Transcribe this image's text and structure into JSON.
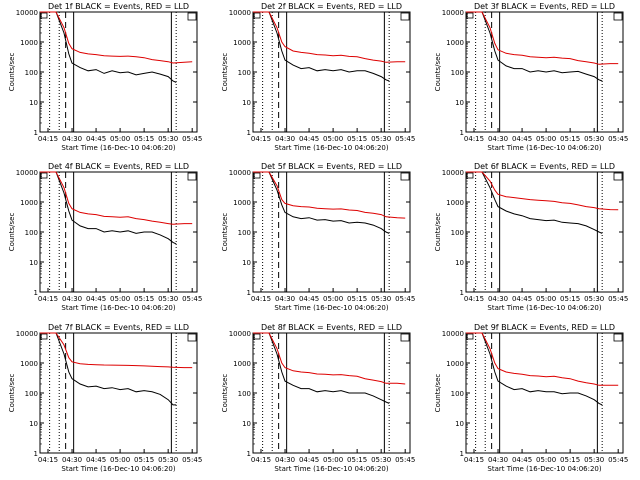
{
  "colors": {
    "events": "#000000",
    "lld": "#dd0000",
    "axis": "#000000",
    "marker": "#000000"
  },
  "shared": {
    "ylabel": "Counts/sec",
    "xlabel": "Start Time (16-Dec-10 04:06:20)",
    "x_ticks": [
      "04:15",
      "04:30",
      "04:45",
      "05:00",
      "05:15",
      "05:30",
      "05:45"
    ],
    "y_ticks": [
      "1",
      "10",
      "100",
      "1000",
      "10000"
    ],
    "y_scale": "log",
    "ylim": [
      1,
      10000
    ]
  },
  "chart_data": [
    {
      "type": "line",
      "title": "Det 1f BLACK = Events, RED = LLD",
      "series": [
        {
          "name": "Events",
          "color": "#000000",
          "x": [
            "04:10",
            "04:15",
            "04:20",
            "04:25",
            "04:28",
            "04:30",
            "04:35",
            "04:40",
            "04:45",
            "04:50",
            "04:55",
            "05:00",
            "05:05",
            "05:10",
            "05:15",
            "05:20",
            "05:25",
            "05:30",
            "05:33",
            "05:35"
          ],
          "values": [
            10000,
            10000,
            10000,
            2000,
            400,
            200,
            140,
            110,
            120,
            90,
            110,
            95,
            100,
            80,
            90,
            100,
            85,
            70,
            50,
            45
          ]
        },
        {
          "name": "LLD",
          "color": "#dd0000",
          "x": [
            "04:10",
            "04:15",
            "04:20",
            "04:25",
            "04:28",
            "04:30",
            "04:35",
            "04:40",
            "04:45",
            "04:50",
            "04:55",
            "05:00",
            "05:05",
            "05:10",
            "05:15",
            "05:20",
            "05:25",
            "05:30",
            "05:33",
            "05:40",
            "05:45"
          ],
          "values": [
            10000,
            10000,
            10000,
            3000,
            900,
            600,
            450,
            400,
            380,
            350,
            340,
            330,
            340,
            320,
            300,
            260,
            240,
            220,
            200,
            210,
            220
          ]
        }
      ]
    },
    {
      "type": "line",
      "title": "Det 2f BLACK = Events, RED = LLD",
      "series": [
        {
          "name": "Events",
          "color": "#000000",
          "x": [
            "04:10",
            "04:15",
            "04:20",
            "04:25",
            "04:28",
            "04:30",
            "04:35",
            "04:40",
            "04:45",
            "04:50",
            "04:55",
            "05:00",
            "05:05",
            "05:10",
            "05:15",
            "05:20",
            "05:25",
            "05:30",
            "05:33",
            "05:35"
          ],
          "values": [
            10000,
            10000,
            10000,
            2000,
            500,
            250,
            170,
            130,
            140,
            110,
            120,
            110,
            120,
            100,
            110,
            110,
            90,
            70,
            55,
            50
          ]
        },
        {
          "name": "LLD",
          "color": "#dd0000",
          "x": [
            "04:10",
            "04:15",
            "04:20",
            "04:25",
            "04:28",
            "04:30",
            "04:35",
            "04:40",
            "04:45",
            "04:50",
            "04:55",
            "05:00",
            "05:05",
            "05:10",
            "05:15",
            "05:20",
            "05:25",
            "05:30",
            "05:33",
            "05:40",
            "05:45"
          ],
          "values": [
            10000,
            10000,
            10000,
            3000,
            1000,
            700,
            500,
            450,
            420,
            380,
            370,
            350,
            360,
            330,
            320,
            280,
            250,
            230,
            210,
            220,
            220
          ]
        }
      ]
    },
    {
      "type": "line",
      "title": "Det 3f BLACK = Events, RED = LLD",
      "series": [
        {
          "name": "Events",
          "color": "#000000",
          "x": [
            "04:10",
            "04:15",
            "04:20",
            "04:25",
            "04:28",
            "04:30",
            "04:35",
            "04:40",
            "04:45",
            "04:50",
            "04:55",
            "05:00",
            "05:05",
            "05:10",
            "05:15",
            "05:20",
            "05:25",
            "05:30",
            "05:33",
            "05:35"
          ],
          "values": [
            10000,
            10000,
            10000,
            2000,
            500,
            250,
            160,
            130,
            130,
            100,
            110,
            100,
            110,
            95,
            100,
            105,
            85,
            70,
            55,
            50
          ]
        },
        {
          "name": "LLD",
          "color": "#dd0000",
          "x": [
            "04:10",
            "04:15",
            "04:20",
            "04:25",
            "04:28",
            "04:30",
            "04:35",
            "04:40",
            "04:45",
            "04:50",
            "04:55",
            "05:00",
            "05:05",
            "05:10",
            "05:15",
            "05:20",
            "05:25",
            "05:30",
            "05:33",
            "05:40",
            "05:45"
          ],
          "values": [
            10000,
            10000,
            10000,
            3000,
            900,
            550,
            420,
            380,
            360,
            320,
            310,
            300,
            310,
            290,
            280,
            240,
            220,
            200,
            180,
            190,
            190
          ]
        }
      ]
    },
    {
      "type": "line",
      "title": "Det 4f BLACK = Events, RED = LLD",
      "series": [
        {
          "name": "Events",
          "color": "#000000",
          "x": [
            "04:10",
            "04:15",
            "04:20",
            "04:25",
            "04:28",
            "04:30",
            "04:35",
            "04:40",
            "04:45",
            "04:50",
            "04:55",
            "05:00",
            "05:05",
            "05:10",
            "05:15",
            "05:20",
            "05:25",
            "05:30",
            "05:33",
            "05:35"
          ],
          "values": [
            10000,
            10000,
            10000,
            2000,
            500,
            250,
            160,
            130,
            130,
            100,
            110,
            100,
            110,
            90,
            100,
            100,
            80,
            60,
            45,
            40
          ]
        },
        {
          "name": "LLD",
          "color": "#dd0000",
          "x": [
            "04:10",
            "04:15",
            "04:20",
            "04:25",
            "04:28",
            "04:30",
            "04:35",
            "04:40",
            "04:45",
            "04:50",
            "04:55",
            "05:00",
            "05:05",
            "05:10",
            "05:15",
            "05:20",
            "05:25",
            "05:30",
            "05:33",
            "05:40",
            "05:45"
          ],
          "values": [
            10000,
            10000,
            10000,
            3000,
            900,
            600,
            450,
            400,
            380,
            330,
            320,
            310,
            320,
            280,
            260,
            230,
            210,
            190,
            180,
            190,
            190
          ]
        }
      ]
    },
    {
      "type": "line",
      "title": "Det 5f BLACK = Events, RED = LLD",
      "series": [
        {
          "name": "Events",
          "color": "#000000",
          "x": [
            "04:10",
            "04:15",
            "04:20",
            "04:25",
            "04:28",
            "04:30",
            "04:35",
            "04:40",
            "04:45",
            "04:50",
            "04:55",
            "05:00",
            "05:05",
            "05:10",
            "05:15",
            "05:20",
            "05:25",
            "05:30",
            "05:33",
            "05:35"
          ],
          "values": [
            10000,
            10000,
            10000,
            2500,
            800,
            450,
            320,
            280,
            300,
            250,
            260,
            230,
            240,
            200,
            210,
            200,
            170,
            130,
            100,
            90
          ]
        },
        {
          "name": "LLD",
          "color": "#dd0000",
          "x": [
            "04:10",
            "04:15",
            "04:20",
            "04:25",
            "04:28",
            "04:30",
            "04:35",
            "04:40",
            "04:45",
            "04:50",
            "04:55",
            "05:00",
            "05:05",
            "05:10",
            "05:15",
            "05:20",
            "05:25",
            "05:30",
            "05:33",
            "05:40",
            "05:45"
          ],
          "values": [
            10000,
            10000,
            10000,
            3500,
            1200,
            900,
            750,
            700,
            680,
            620,
            600,
            580,
            590,
            540,
            520,
            450,
            420,
            380,
            320,
            300,
            290
          ]
        }
      ]
    },
    {
      "type": "line",
      "title": "Det 6f BLACK = Events, RED = LLD",
      "series": [
        {
          "name": "Events",
          "color": "#000000",
          "x": [
            "04:10",
            "04:15",
            "04:20",
            "04:25",
            "04:28",
            "04:30",
            "04:35",
            "04:40",
            "04:45",
            "04:50",
            "04:55",
            "05:00",
            "05:05",
            "05:10",
            "05:15",
            "05:20",
            "05:25",
            "05:30",
            "05:33",
            "05:35"
          ],
          "values": [
            10000,
            10000,
            10000,
            3000,
            1200,
            700,
            500,
            400,
            350,
            280,
            260,
            240,
            250,
            210,
            200,
            190,
            160,
            120,
            100,
            90
          ]
        },
        {
          "name": "LLD",
          "color": "#dd0000",
          "x": [
            "04:10",
            "04:15",
            "04:20",
            "04:25",
            "04:28",
            "04:30",
            "04:35",
            "04:40",
            "04:45",
            "04:50",
            "04:55",
            "05:00",
            "05:05",
            "05:10",
            "05:15",
            "05:20",
            "05:25",
            "05:30",
            "05:33",
            "05:40",
            "05:45"
          ],
          "values": [
            10000,
            10000,
            10000,
            5000,
            2500,
            1800,
            1500,
            1400,
            1300,
            1200,
            1150,
            1100,
            1050,
            950,
            900,
            800,
            700,
            650,
            600,
            560,
            550
          ]
        }
      ]
    },
    {
      "type": "line",
      "title": "Det 7f BLACK = Events, RED = LLD",
      "series": [
        {
          "name": "Events",
          "color": "#000000",
          "x": [
            "04:10",
            "04:15",
            "04:20",
            "04:25",
            "04:28",
            "04:30",
            "04:35",
            "04:40",
            "04:45",
            "04:50",
            "04:55",
            "05:00",
            "05:05",
            "05:10",
            "05:15",
            "05:20",
            "05:25",
            "05:30",
            "05:33",
            "05:35"
          ],
          "values": [
            10000,
            10000,
            10000,
            2000,
            500,
            300,
            200,
            160,
            170,
            140,
            150,
            130,
            140,
            110,
            120,
            110,
            90,
            60,
            40,
            40
          ]
        },
        {
          "name": "LLD",
          "color": "#dd0000",
          "x": [
            "04:10",
            "04:15",
            "04:20",
            "04:25",
            "04:28",
            "04:30",
            "04:35",
            "04:40",
            "04:45",
            "04:50",
            "04:55",
            "05:00",
            "05:05",
            "05:10",
            "05:15",
            "05:20",
            "05:25",
            "05:30",
            "05:33",
            "05:40",
            "05:45"
          ],
          "values": [
            10000,
            10000,
            10000,
            4000,
            1500,
            1100,
            950,
            900,
            880,
            860,
            850,
            840,
            830,
            820,
            800,
            780,
            760,
            740,
            720,
            700,
            700
          ]
        }
      ]
    },
    {
      "type": "line",
      "title": "Det 8f BLACK = Events, RED = LLD",
      "series": [
        {
          "name": "Events",
          "color": "#000000",
          "x": [
            "04:10",
            "04:15",
            "04:20",
            "04:25",
            "04:28",
            "04:30",
            "04:35",
            "04:40",
            "04:45",
            "04:50",
            "04:55",
            "05:00",
            "05:05",
            "05:10",
            "05:15",
            "05:20",
            "05:25",
            "05:30",
            "05:33",
            "05:35"
          ],
          "values": [
            10000,
            10000,
            10000,
            2000,
            500,
            250,
            180,
            140,
            140,
            110,
            120,
            110,
            120,
            100,
            100,
            100,
            80,
            60,
            50,
            45
          ]
        },
        {
          "name": "LLD",
          "color": "#dd0000",
          "x": [
            "04:10",
            "04:15",
            "04:20",
            "04:25",
            "04:28",
            "04:30",
            "04:35",
            "04:40",
            "04:45",
            "04:50",
            "04:55",
            "05:00",
            "05:05",
            "05:10",
            "05:15",
            "05:20",
            "05:25",
            "05:30",
            "05:33",
            "05:40",
            "05:45"
          ],
          "values": [
            10000,
            10000,
            10000,
            3000,
            1000,
            700,
            550,
            500,
            480,
            430,
            420,
            400,
            410,
            380,
            360,
            300,
            270,
            240,
            210,
            210,
            200
          ]
        }
      ]
    },
    {
      "type": "line",
      "title": "Det 9f BLACK = Events, RED = LLD",
      "series": [
        {
          "name": "Events",
          "color": "#000000",
          "x": [
            "04:10",
            "04:15",
            "04:20",
            "04:25",
            "04:28",
            "04:30",
            "04:35",
            "04:40",
            "04:45",
            "04:50",
            "04:55",
            "05:00",
            "05:05",
            "05:10",
            "05:15",
            "05:20",
            "05:25",
            "05:30",
            "05:33",
            "05:35"
          ],
          "values": [
            10000,
            10000,
            10000,
            2000,
            500,
            250,
            170,
            130,
            140,
            110,
            120,
            110,
            110,
            95,
            100,
            100,
            80,
            60,
            45,
            40
          ]
        },
        {
          "name": "LLD",
          "color": "#dd0000",
          "x": [
            "04:10",
            "04:15",
            "04:20",
            "04:25",
            "04:28",
            "04:30",
            "04:35",
            "04:40",
            "04:45",
            "04:50",
            "04:55",
            "05:00",
            "05:05",
            "05:10",
            "05:15",
            "05:20",
            "05:25",
            "05:30",
            "05:33",
            "05:40",
            "05:45"
          ],
          "values": [
            10000,
            10000,
            10000,
            3000,
            1000,
            650,
            500,
            450,
            420,
            380,
            370,
            350,
            360,
            320,
            300,
            250,
            220,
            200,
            180,
            180,
            180
          ]
        }
      ]
    }
  ]
}
